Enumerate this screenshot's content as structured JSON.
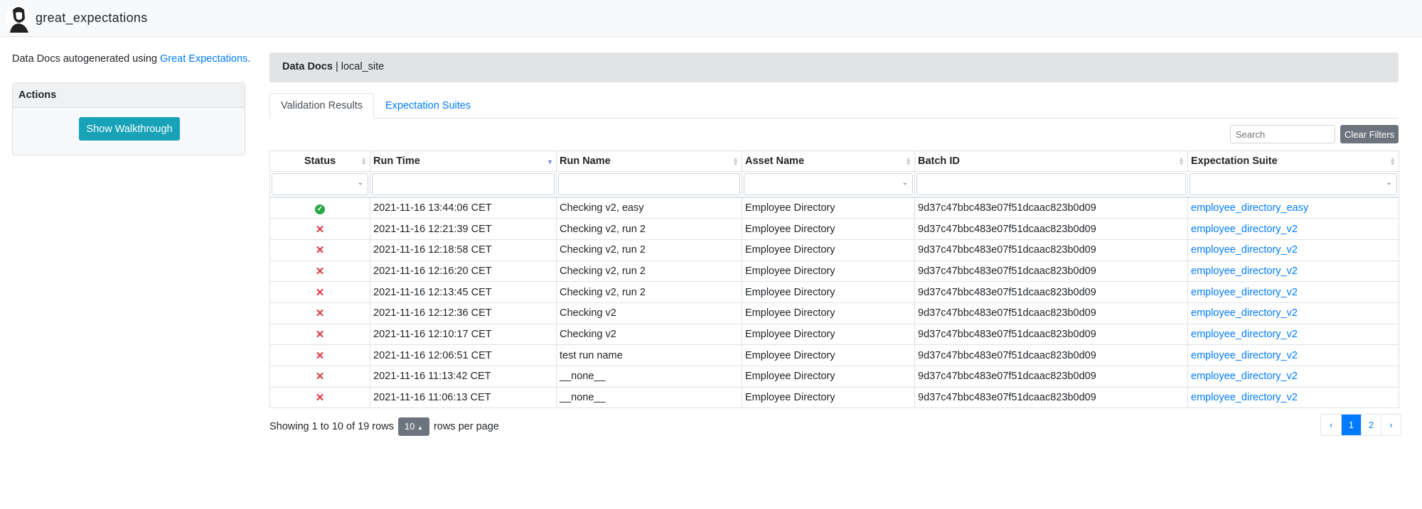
{
  "navbar": {
    "brand": "great_expectations"
  },
  "sidebar": {
    "intro_prefix": "Data Docs autogenerated using ",
    "intro_link": "Great Expectations",
    "intro_suffix": ".",
    "actions_title": "Actions",
    "walkthrough_label": "Show Walkthrough"
  },
  "breadcrumb": {
    "title": "Data Docs",
    "separator": " | ",
    "site": "local_site"
  },
  "tabs": [
    {
      "label": "Validation Results",
      "active": true
    },
    {
      "label": "Expectation Suites",
      "active": false
    }
  ],
  "toolbar": {
    "search_placeholder": "Search",
    "clear_label": "Clear Filters"
  },
  "table": {
    "columns": [
      "Status",
      "Run Time",
      "Run Name",
      "Asset Name",
      "Batch ID",
      "Expectation Suite"
    ],
    "sorted_column": "Run Time",
    "sort_direction": "desc",
    "rows": [
      {
        "status": "success",
        "run_time": "2021-11-16 13:44:06 CET",
        "run_name": "Checking v2, easy",
        "asset": "Employee Directory",
        "batch": "9d37c47bbc483e07f51dcaac823b0d09",
        "suite": "employee_directory_easy"
      },
      {
        "status": "failed",
        "run_time": "2021-11-16 12:21:39 CET",
        "run_name": "Checking v2, run 2",
        "asset": "Employee Directory",
        "batch": "9d37c47bbc483e07f51dcaac823b0d09",
        "suite": "employee_directory_v2"
      },
      {
        "status": "failed",
        "run_time": "2021-11-16 12:18:58 CET",
        "run_name": "Checking v2, run 2",
        "asset": "Employee Directory",
        "batch": "9d37c47bbc483e07f51dcaac823b0d09",
        "suite": "employee_directory_v2"
      },
      {
        "status": "failed",
        "run_time": "2021-11-16 12:16:20 CET",
        "run_name": "Checking v2, run 2",
        "asset": "Employee Directory",
        "batch": "9d37c47bbc483e07f51dcaac823b0d09",
        "suite": "employee_directory_v2"
      },
      {
        "status": "failed",
        "run_time": "2021-11-16 12:13:45 CET",
        "run_name": "Checking v2, run 2",
        "asset": "Employee Directory",
        "batch": "9d37c47bbc483e07f51dcaac823b0d09",
        "suite": "employee_directory_v2"
      },
      {
        "status": "failed",
        "run_time": "2021-11-16 12:12:36 CET",
        "run_name": "Checking v2",
        "asset": "Employee Directory",
        "batch": "9d37c47bbc483e07f51dcaac823b0d09",
        "suite": "employee_directory_v2"
      },
      {
        "status": "failed",
        "run_time": "2021-11-16 12:10:17 CET",
        "run_name": "Checking v2",
        "asset": "Employee Directory",
        "batch": "9d37c47bbc483e07f51dcaac823b0d09",
        "suite": "employee_directory_v2"
      },
      {
        "status": "failed",
        "run_time": "2021-11-16 12:06:51 CET",
        "run_name": "test run name",
        "asset": "Employee Directory",
        "batch": "9d37c47bbc483e07f51dcaac823b0d09",
        "suite": "employee_directory_v2"
      },
      {
        "status": "failed",
        "run_time": "2021-11-16 11:13:42 CET",
        "run_name": "__none__",
        "asset": "Employee Directory",
        "batch": "9d37c47bbc483e07f51dcaac823b0d09",
        "suite": "employee_directory_v2"
      },
      {
        "status": "failed",
        "run_time": "2021-11-16 11:06:13 CET",
        "run_name": "__none__",
        "asset": "Employee Directory",
        "batch": "9d37c47bbc483e07f51dcaac823b0d09",
        "suite": "employee_directory_v2"
      }
    ]
  },
  "footer": {
    "showing": "Showing 1 to 10 of 19 rows",
    "page_size": "10",
    "page_size_suffix": "rows per page"
  },
  "pagination": {
    "prev": "‹",
    "pages": [
      "1",
      "2"
    ],
    "current": "1",
    "next": "›"
  },
  "colors": {
    "link": "#007bff",
    "success": "#28a745",
    "failure": "#dc3545",
    "button": "#17a2b8"
  }
}
